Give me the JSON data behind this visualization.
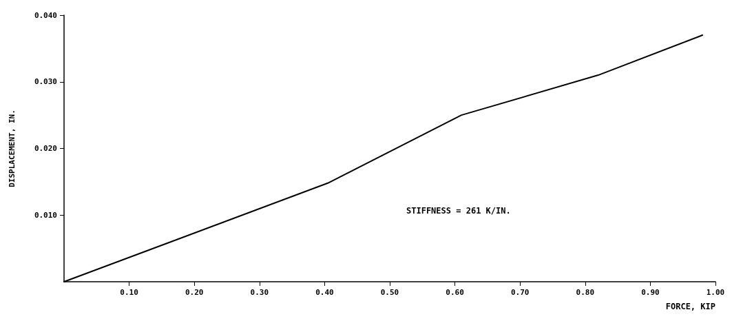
{
  "chart_data": {
    "type": "line",
    "xlabel": "FORCE, KIP",
    "ylabel": "DISPLACEMENT, IN.",
    "x": [
      0,
      0.405,
      0.61,
      0.82,
      0.98
    ],
    "series": [
      {
        "color": "#000000",
        "values": [
          0,
          0.0148,
          0.025,
          0.031,
          0.037
        ]
      }
    ],
    "xlim": [
      0,
      1.0
    ],
    "xticks": [
      {
        "value": 0.1,
        "label": "0.10"
      },
      {
        "value": 0.2,
        "label": "0.20"
      },
      {
        "value": 0.3,
        "label": "0.30"
      },
      {
        "value": 0.4,
        "label": "0.40"
      },
      {
        "value": 0.5,
        "label": "0.50"
      },
      {
        "value": 0.6,
        "label": "0.60"
      },
      {
        "value": 0.7,
        "label": "0.70"
      },
      {
        "value": 0.8,
        "label": "0.80"
      },
      {
        "value": 0.9,
        "label": "0.90"
      },
      {
        "value": 1.0,
        "label": "1.00"
      }
    ],
    "ylim": [
      0,
      0.04
    ],
    "yticks": [
      {
        "value": 0.01,
        "label": "0.010"
      },
      {
        "value": 0.02,
        "label": "0.020"
      },
      {
        "value": 0.03,
        "label": "0.030"
      },
      {
        "value": 0.04,
        "label": "0.040"
      }
    ],
    "annotations": [
      "STIFFNESS = 261 K/IN."
    ],
    "grid": false,
    "marker": "none",
    "line_style": "solid"
  }
}
